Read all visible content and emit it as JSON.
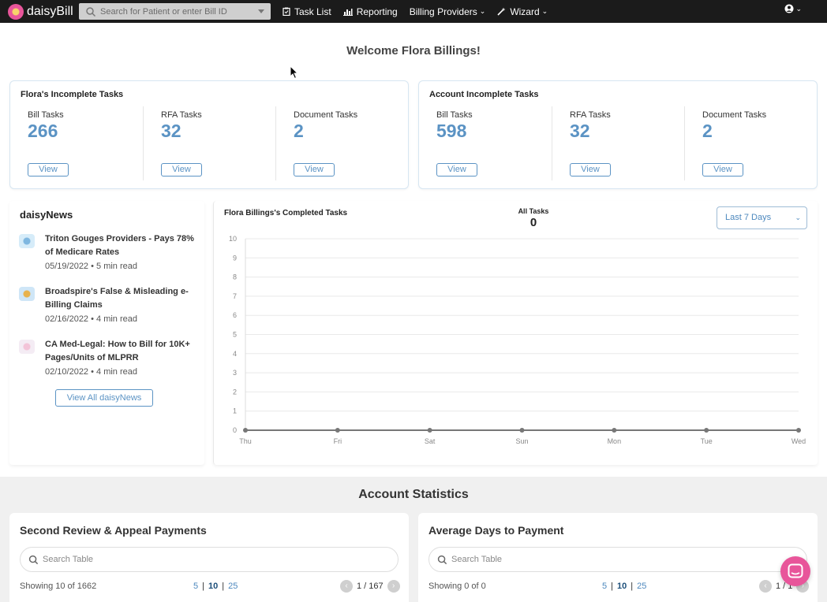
{
  "nav": {
    "brand": "daisyBill",
    "search_placeholder": "Search for Patient or enter Bill ID",
    "items": [
      "Task List",
      "Reporting",
      "Billing Providers",
      "Wizard"
    ]
  },
  "welcome": "Welcome Flora Billings!",
  "user_tasks": {
    "title": "Flora's Incomplete Tasks",
    "cols": [
      {
        "label": "Bill Tasks",
        "count": "266",
        "button": "View"
      },
      {
        "label": "RFA Tasks",
        "count": "32",
        "button": "View"
      },
      {
        "label": "Document Tasks",
        "count": "2",
        "button": "View"
      }
    ]
  },
  "account_tasks": {
    "title": "Account Incomplete Tasks",
    "cols": [
      {
        "label": "Bill Tasks",
        "count": "598",
        "button": "View"
      },
      {
        "label": "RFA Tasks",
        "count": "32",
        "button": "View"
      },
      {
        "label": "Document Tasks",
        "count": "2",
        "button": "View"
      }
    ]
  },
  "news": {
    "title": "daisyNews",
    "items": [
      {
        "headline": "Triton Gouges Providers - Pays 78% of Medicare Rates",
        "date": "05/19/2022",
        "read": "5 min read"
      },
      {
        "headline": "Broadspire's False & Misleading e-Billing Claims",
        "date": "02/16/2022",
        "read": "4 min read"
      },
      {
        "headline": "CA Med-Legal: How to Bill for 10K+ Pages/Units of MLPRR",
        "date": "02/10/2022",
        "read": "4 min read"
      }
    ],
    "view_all": "View All daisyNews"
  },
  "completed": {
    "title": "Flora Billings's Completed Tasks",
    "all_tasks_label": "All Tasks",
    "all_tasks_count": "0",
    "range": "Last 7 Days"
  },
  "chart_data": {
    "type": "line",
    "title": "Flora Billings's Completed Tasks",
    "categories": [
      "Thu",
      "Fri",
      "Sat",
      "Sun",
      "Mon",
      "Tue",
      "Wed"
    ],
    "values": [
      0,
      0,
      0,
      0,
      0,
      0,
      0
    ],
    "ylim": [
      0,
      10
    ],
    "yticks": [
      0,
      1,
      2,
      3,
      4,
      5,
      6,
      7,
      8,
      9,
      10
    ],
    "grid": true,
    "color": "#777777"
  },
  "stats": {
    "title": "Account Statistics",
    "cards": [
      {
        "title": "Second Review & Appeal Payments",
        "search": "Search Table",
        "showing": "Showing 10 of 1662",
        "sizes": [
          "5",
          "10",
          "25"
        ],
        "page": "1 / 167"
      },
      {
        "title": "Average Days to Payment",
        "search": "Search Table",
        "showing": "Showing 0 of 0",
        "sizes": [
          "5",
          "10",
          "25"
        ],
        "page": "1 / 1"
      }
    ]
  },
  "colors": {
    "accent": "#5b93c4",
    "brand_pink": "#e8559a",
    "navbar": "#1b1b1b"
  }
}
